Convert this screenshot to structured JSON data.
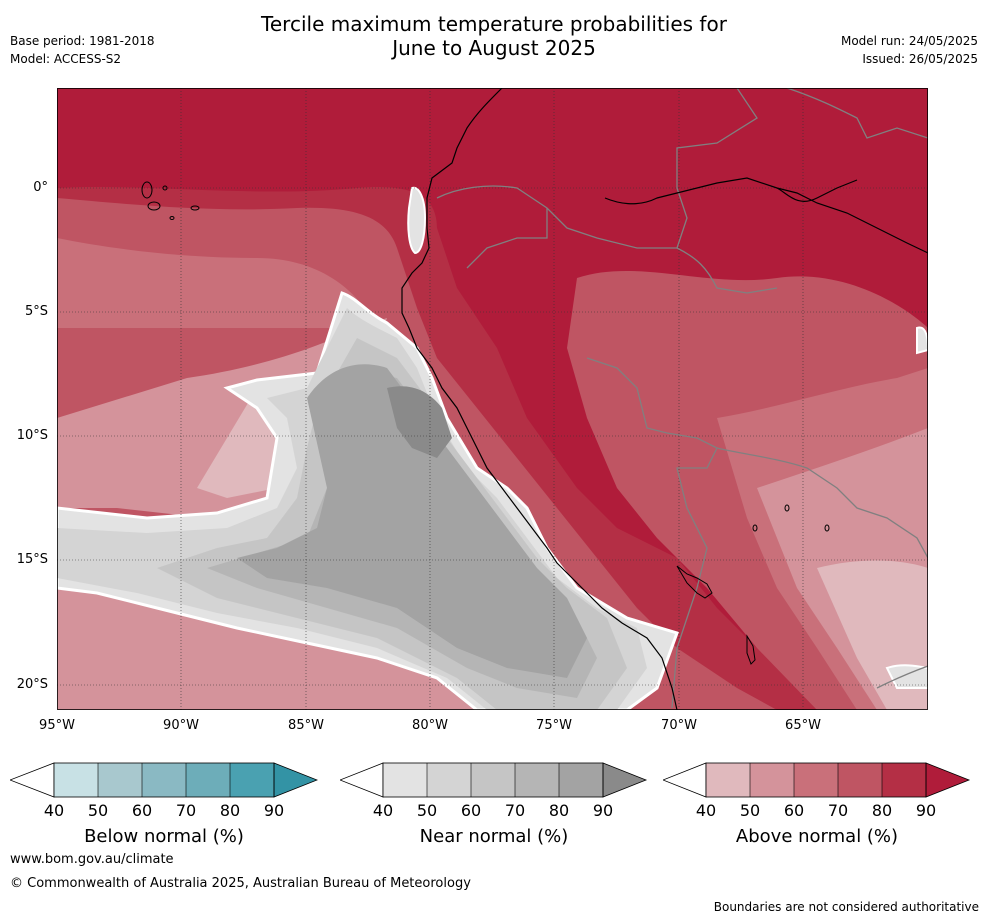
{
  "title_line1": "Tercile maximum temperature probabilities for",
  "title_line2": "June to August 2025",
  "base_period": "Base period: 1981-2018",
  "model": "Model: ACCESS-S2",
  "model_run": "Model run: 24/05/2025",
  "issued": "Issued: 26/05/2025",
  "lat_labels": [
    "0°",
    "5°S",
    "10°S",
    "15°S",
    "20°S"
  ],
  "lon_labels": [
    "95°W",
    "90°W",
    "85°W",
    "80°W",
    "75°W",
    "70°W",
    "65°W"
  ],
  "colors": {
    "above": [
      "#e0b9bd",
      "#d4939b",
      "#c9707a",
      "#bf5563",
      "#b42f45",
      "#b01c3a"
    ],
    "near": [
      "#e3e3e3",
      "#d4d4d4",
      "#c5c5c5",
      "#b5b5b5",
      "#a3a3a3",
      "#8a8a8a"
    ],
    "below": [
      "#c8e1e5",
      "#a8c8ce",
      "#8ab9c3",
      "#6dadb9",
      "#4aa1b1",
      "#3393a5"
    ]
  },
  "colorbars": {
    "below": {
      "title": "Below normal (%)",
      "ticks": [
        "40",
        "50",
        "60",
        "70",
        "80",
        "90"
      ]
    },
    "near": {
      "title": "Near normal (%)",
      "ticks": [
        "40",
        "50",
        "60",
        "70",
        "80",
        "90"
      ]
    },
    "above": {
      "title": "Above normal (%)",
      "ticks": [
        "40",
        "50",
        "60",
        "70",
        "80",
        "90"
      ]
    }
  },
  "footer": {
    "url": "www.bom.gov.au/climate",
    "copyright": "© Commonwealth of Australia 2025, Australian Bureau of Meteorology",
    "disclaimer": "Boundaries are not considered authoritative"
  }
}
